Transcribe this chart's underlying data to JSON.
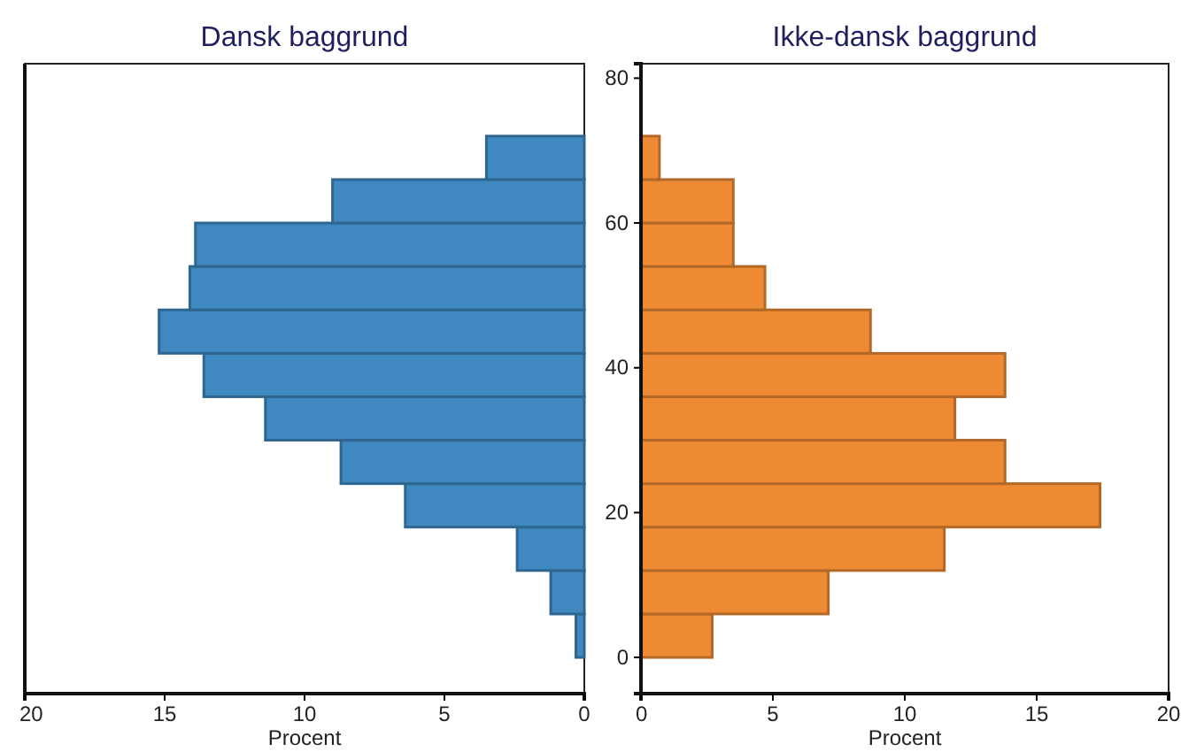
{
  "chart_data": [
    {
      "type": "histogram",
      "orientation": "horizontal",
      "title": "Dansk baggrund",
      "xlabel": "Procent",
      "color": "#3f88c0",
      "bins": [
        0,
        6,
        12,
        18,
        24,
        30,
        36,
        42,
        48,
        54,
        60,
        66,
        72
      ],
      "values": [
        0.3,
        1.2,
        2.4,
        6.4,
        8.7,
        11.4,
        13.6,
        15.2,
        14.1,
        13.9,
        9.0,
        3.5
      ],
      "xlim": [
        20,
        0
      ],
      "xticks": [
        20,
        15,
        10,
        5,
        0
      ],
      "ylim": [
        -5,
        82
      ],
      "yticks": [
        0,
        20,
        40,
        60,
        80
      ],
      "tick_labels": "x",
      "grid": false
    },
    {
      "type": "histogram",
      "orientation": "horizontal",
      "title": "Ikke-dansk baggrund",
      "xlabel": "Procent",
      "color": "#ee8a34",
      "bins": [
        0,
        6,
        12,
        18,
        24,
        30,
        36,
        42,
        48,
        54,
        60,
        66,
        72
      ],
      "values": [
        2.7,
        7.1,
        11.5,
        17.4,
        13.8,
        11.9,
        13.8,
        8.7,
        4.7,
        3.5,
        3.5,
        0.7
      ],
      "xlim": [
        0,
        20
      ],
      "xticks": [
        0,
        5,
        10,
        15,
        20
      ],
      "ylim": [
        -5,
        82
      ],
      "yticks": [
        0,
        20,
        40,
        60,
        80
      ],
      "grid": false
    }
  ]
}
